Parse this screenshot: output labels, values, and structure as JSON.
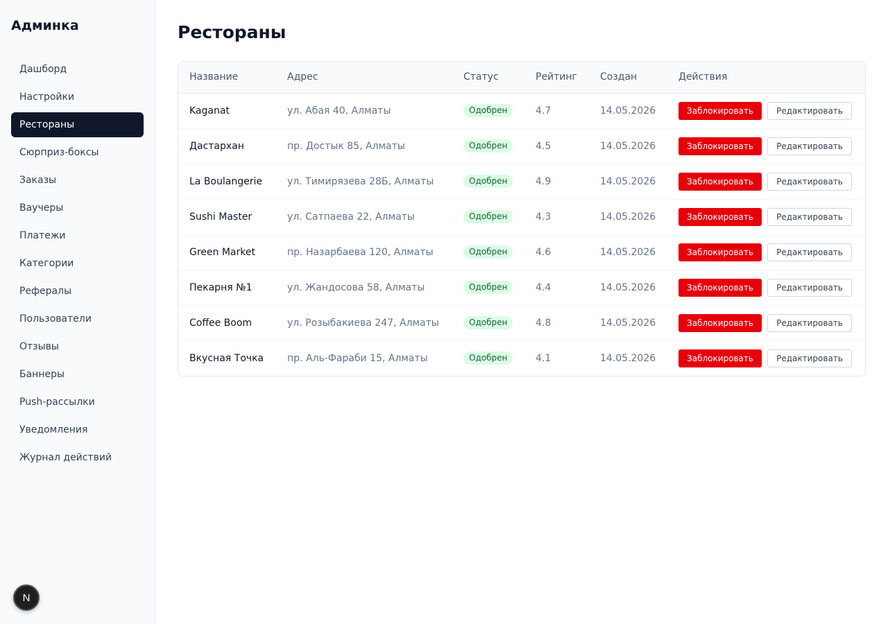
{
  "brand": "Админка",
  "nav": [
    {
      "label": "Дашборд",
      "active": false
    },
    {
      "label": "Настройки",
      "active": false
    },
    {
      "label": "Рестораны",
      "active": true
    },
    {
      "label": "Сюрприз-боксы",
      "active": false
    },
    {
      "label": "Заказы",
      "active": false
    },
    {
      "label": "Ваучеры",
      "active": false
    },
    {
      "label": "Платежи",
      "active": false
    },
    {
      "label": "Категории",
      "active": false
    },
    {
      "label": "Рефералы",
      "active": false
    },
    {
      "label": "Пользователи",
      "active": false
    },
    {
      "label": "Отзывы",
      "active": false
    },
    {
      "label": "Баннеры",
      "active": false
    },
    {
      "label": "Push-рассылки",
      "active": false
    },
    {
      "label": "Уведомления",
      "active": false
    },
    {
      "label": "Журнал действий",
      "active": false
    }
  ],
  "next_badge": "N",
  "page": {
    "title": "Рестораны"
  },
  "table": {
    "columns": [
      "Название",
      "Адрес",
      "Статус",
      "Рейтинг",
      "Создан",
      "Действия"
    ],
    "block_label": "Заблокировать",
    "edit_label": "Редактировать",
    "rows": [
      {
        "name": "Kaganat",
        "address": "ул. Абая 40, Алматы",
        "status": "Одобрен",
        "rating": "4.7",
        "created": "14.05.2026"
      },
      {
        "name": "Дастархан",
        "address": "пр. Достык 85, Алматы",
        "status": "Одобрен",
        "rating": "4.5",
        "created": "14.05.2026"
      },
      {
        "name": "La Boulangerie",
        "address": "ул. Тимирязева 28Б, Алматы",
        "status": "Одобрен",
        "rating": "4.9",
        "created": "14.05.2026"
      },
      {
        "name": "Sushi Master",
        "address": "ул. Сатпаева 22, Алматы",
        "status": "Одобрен",
        "rating": "4.3",
        "created": "14.05.2026"
      },
      {
        "name": "Green Market",
        "address": "пр. Назарбаева 120, Алматы",
        "status": "Одобрен",
        "rating": "4.6",
        "created": "14.05.2026"
      },
      {
        "name": "Пекарня №1",
        "address": "ул. Жандосова 58, Алматы",
        "status": "Одобрен",
        "rating": "4.4",
        "created": "14.05.2026"
      },
      {
        "name": "Coffee Boom",
        "address": "ул. Розыбакиева 247, Алматы",
        "status": "Одобрен",
        "rating": "4.8",
        "created": "14.05.2026"
      },
      {
        "name": "Вкусная Точка",
        "address": "пр. Аль-Фараби 15, Алматы",
        "status": "Одобрен",
        "rating": "4.1",
        "created": "14.05.2026"
      }
    ]
  },
  "colors": {
    "sidebar_active_bg": "#0f172a",
    "block_button_bg": "#e5000a",
    "status_badge_bg": "#dcfce7",
    "status_badge_text": "#166534"
  }
}
